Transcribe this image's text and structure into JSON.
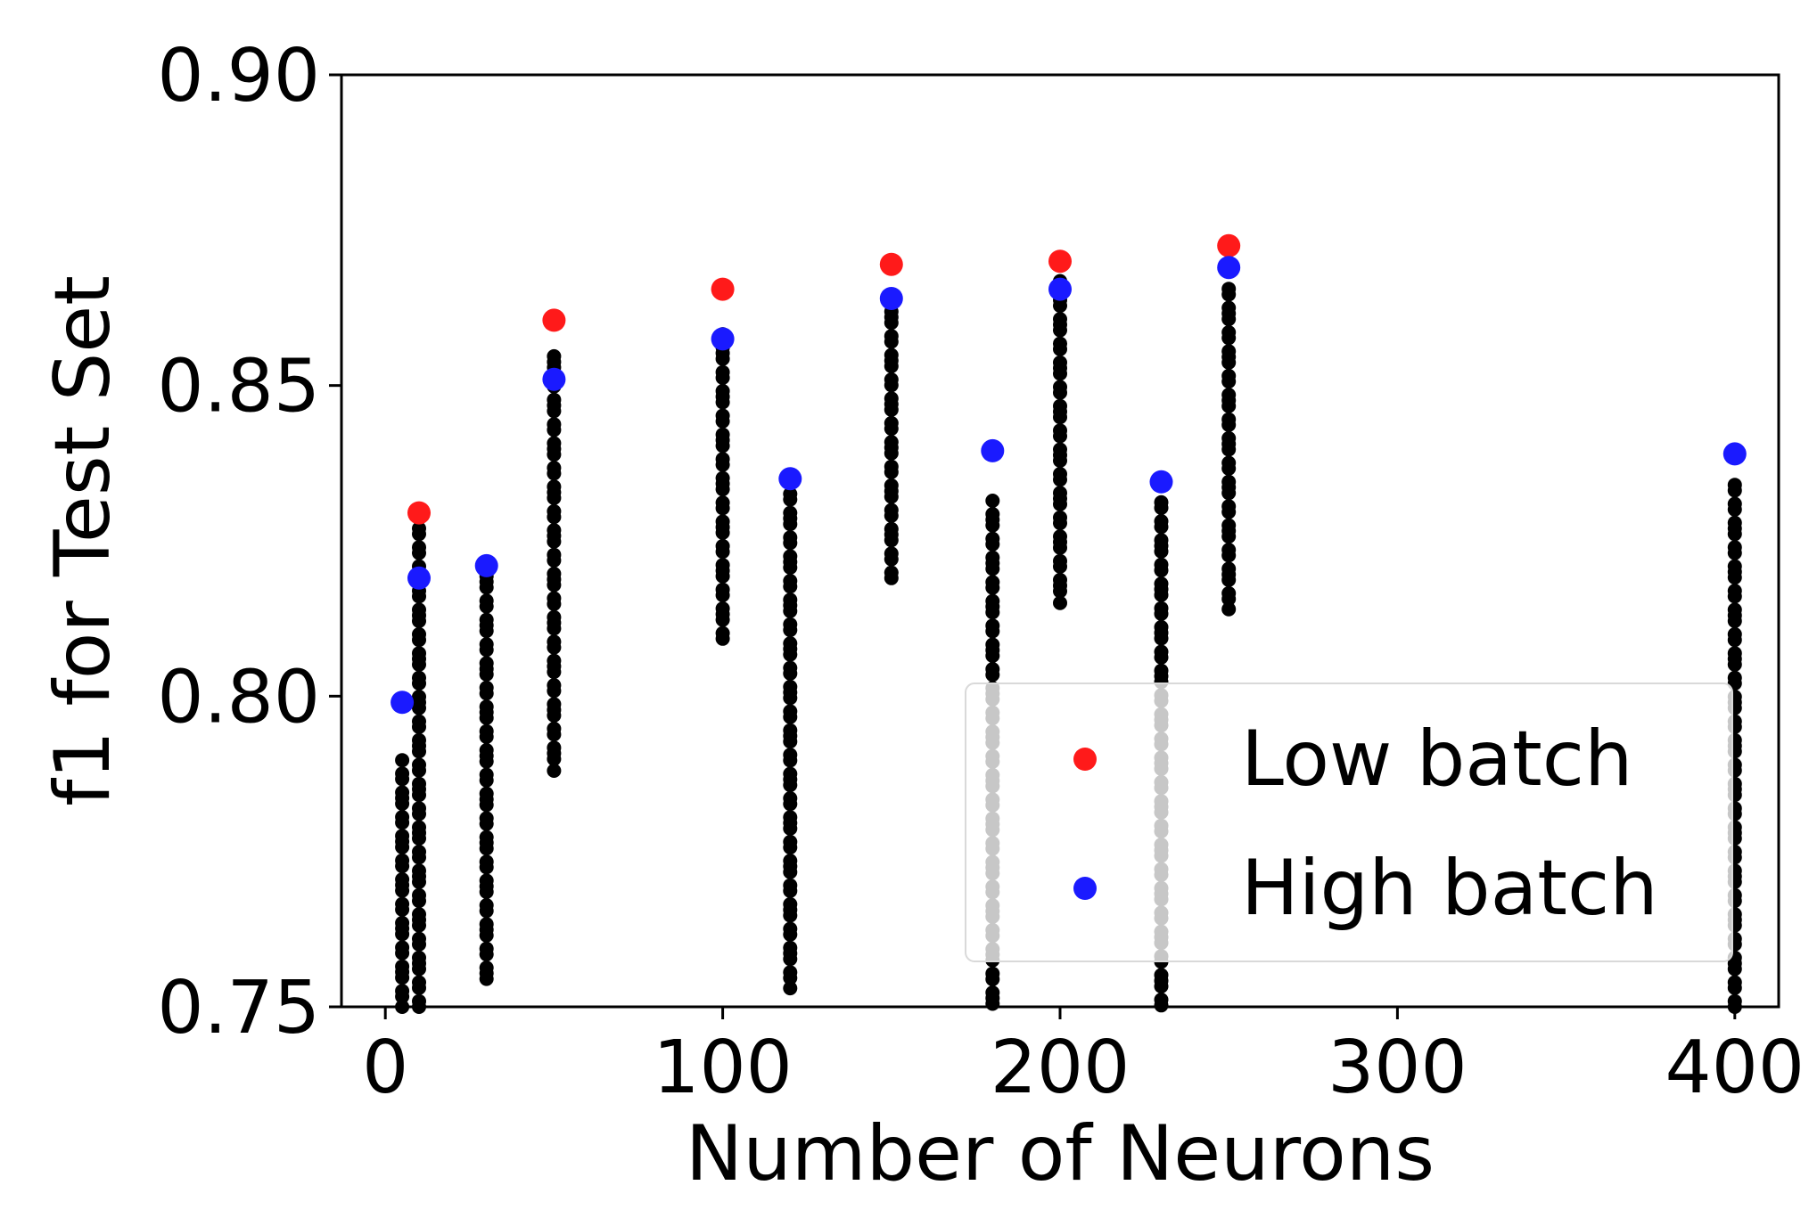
{
  "chart_data": {
    "type": "scatter",
    "title": "",
    "xlabel": "Number of Neurons",
    "ylabel": "f1 for Test Set",
    "xlim": [
      -13,
      413
    ],
    "ylim": [
      0.75,
      0.9
    ],
    "x_ticks": [
      0,
      100,
      200,
      300,
      400
    ],
    "x_tick_labels": [
      "0",
      "100",
      "200",
      "300",
      "400"
    ],
    "y_ticks": [
      0.75,
      0.8,
      0.85,
      0.9
    ],
    "y_tick_labels": [
      "0.75",
      "0.80",
      "0.85",
      "0.90"
    ],
    "grid": false,
    "legend_position": "lower right",
    "series": [
      {
        "name": "Low batch",
        "color": "#ff1a1a",
        "points": [
          {
            "x": 10,
            "y": 0.8295
          },
          {
            "x": 50,
            "y": 0.8605
          },
          {
            "x": 100,
            "y": 0.8655
          },
          {
            "x": 150,
            "y": 0.8695
          },
          {
            "x": 200,
            "y": 0.87
          },
          {
            "x": 250,
            "y": 0.8725
          }
        ]
      },
      {
        "name": "High batch",
        "color": "#1a1aff",
        "points": [
          {
            "x": 5,
            "y": 0.799
          },
          {
            "x": 10,
            "y": 0.819
          },
          {
            "x": 30,
            "y": 0.821
          },
          {
            "x": 50,
            "y": 0.851
          },
          {
            "x": 100,
            "y": 0.8575
          },
          {
            "x": 120,
            "y": 0.835
          },
          {
            "x": 150,
            "y": 0.864
          },
          {
            "x": 180,
            "y": 0.8395
          },
          {
            "x": 200,
            "y": 0.8655
          },
          {
            "x": 230,
            "y": 0.8345
          },
          {
            "x": 250,
            "y": 0.869
          },
          {
            "x": 400,
            "y": 0.839
          }
        ]
      }
    ],
    "background_runs": {
      "color": "#000000",
      "columns": [
        {
          "x": 5,
          "y_min": 0.75,
          "y_max": 0.79
        },
        {
          "x": 10,
          "y_min": 0.75,
          "y_max": 0.828
        },
        {
          "x": 30,
          "y_min": 0.754,
          "y_max": 0.82
        },
        {
          "x": 50,
          "y_min": 0.788,
          "y_max": 0.856
        },
        {
          "x": 100,
          "y_min": 0.809,
          "y_max": 0.859
        },
        {
          "x": 120,
          "y_min": 0.753,
          "y_max": 0.834
        },
        {
          "x": 150,
          "y_min": 0.819,
          "y_max": 0.863
        },
        {
          "x": 180,
          "y_min": 0.75,
          "y_max": 0.832
        },
        {
          "x": 200,
          "y_min": 0.815,
          "y_max": 0.868
        },
        {
          "x": 230,
          "y_min": 0.75,
          "y_max": 0.832
        },
        {
          "x": 250,
          "y_min": 0.814,
          "y_max": 0.867
        },
        {
          "x": 400,
          "y_min": 0.75,
          "y_max": 0.834
        }
      ]
    }
  }
}
